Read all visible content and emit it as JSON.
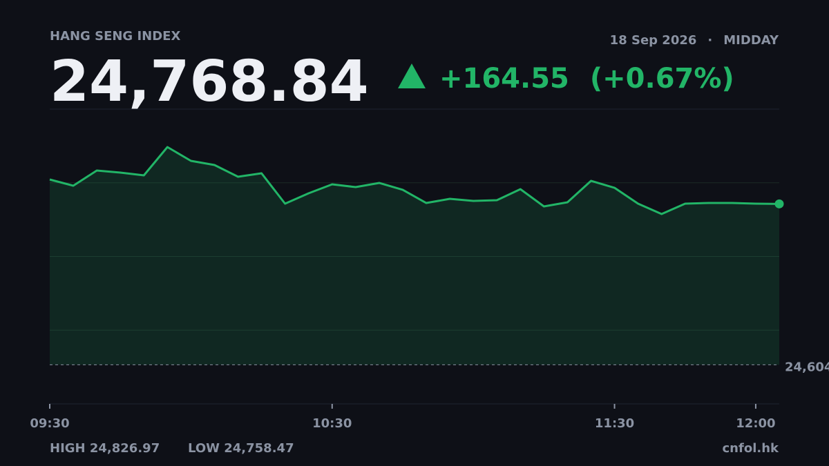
{
  "chart_data": {
    "type": "line",
    "title": "HANG SENG INDEX",
    "date": "18 Sep 2026",
    "separator": "·",
    "session": "MIDDAY",
    "last_label": "24,768.84",
    "change_label": "+164.55",
    "change_pct_label": "(+0.67%)",
    "high_label": "HIGH 24,826.97",
    "low_label": "LOW 24,758.47",
    "source": "cnfol.hk",
    "color": "#22b567",
    "categories": [
      "09:30",
      null,
      null,
      null,
      null,
      null,
      null,
      null,
      null,
      null,
      null,
      null,
      "10:30",
      null,
      null,
      null,
      null,
      null,
      null,
      null,
      null,
      null,
      null,
      null,
      "11:30",
      null,
      null,
      null,
      null,
      null,
      "12:00",
      null
    ],
    "values": [
      24793.78,
      24787.42,
      24802.96,
      24800.84,
      24798.02,
      24826.97,
      24812.85,
      24808.61,
      24796.6,
      24800.13,
      24769.06,
      24779.65,
      24788.84,
      24786.01,
      24790.25,
      24783.19,
      24769.77,
      24774.0,
      24771.89,
      24772.59,
      24783.89,
      24766.24,
      24770.47,
      24792.37,
      24785.3,
      24769.06,
      24758.47,
      24769.06,
      24769.77,
      24769.77,
      24769.06,
      24768.84
    ],
    "ylim": [
      24564.3,
      24865.8
    ],
    "reference": {
      "value": 24604.29,
      "label": "24,604"
    },
    "grid": true
  }
}
